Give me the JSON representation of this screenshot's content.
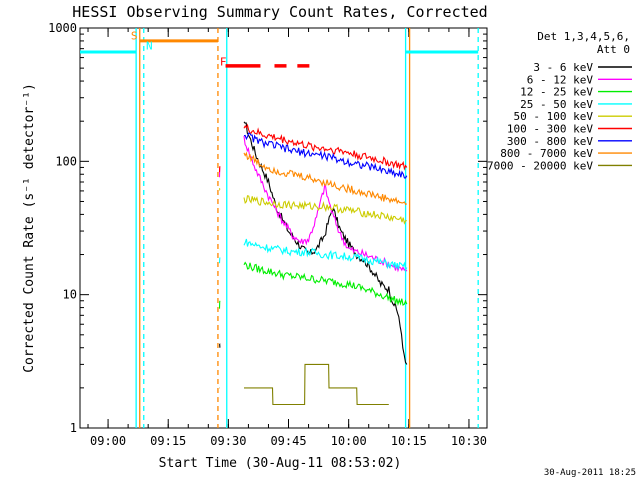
{
  "chart_data": {
    "type": "line",
    "title": "HESSI Observing Summary Count Rates, Corrected",
    "xlabel": "Start Time (30-Aug-11 08:53:02)",
    "ylabel": "Corrected Count Rate (s⁻¹ detector⁻¹)",
    "yscale": "log",
    "ylim": [
      1,
      1000
    ],
    "xlim_minutes": [
      533.0,
      634.5
    ],
    "x_ticks": [
      {
        "label": "09:00",
        "minute": 540
      },
      {
        "label": "09:15",
        "minute": 555
      },
      {
        "label": "09:30",
        "minute": 570
      },
      {
        "label": "09:45",
        "minute": 585
      },
      {
        "label": "10:00",
        "minute": 600
      },
      {
        "label": "10:15",
        "minute": 615
      },
      {
        "label": "10:30",
        "minute": 630
      }
    ],
    "y_ticks": [
      {
        "label": "1",
        "value": 1
      },
      {
        "label": "10",
        "value": 10
      },
      {
        "label": "100",
        "value": 100
      },
      {
        "label": "1000",
        "value": 1000
      }
    ],
    "legend": {
      "placement": "right",
      "header": [
        "Det 1,3,4,5,6,",
        "Att 0"
      ],
      "entries": [
        {
          "label": "3 - 6 keV",
          "color": "#000000"
        },
        {
          "label": "6 - 12 keV",
          "color": "#ff00ff"
        },
        {
          "label": "12 - 25 keV",
          "color": "#00ee00"
        },
        {
          "label": "25 - 50 keV",
          "color": "#00ffff"
        },
        {
          "label": "50 - 100 keV",
          "color": "#cccc00"
        },
        {
          "label": "100 - 300 keV",
          "color": "#ff0000"
        },
        {
          "label": "300 - 800 keV",
          "color": "#0000ff"
        },
        {
          "label": "800 - 7000 keV",
          "color": "#ff8800"
        },
        {
          "label": "7000 - 20000 keV",
          "color": "#808000"
        }
      ]
    },
    "series": [
      {
        "name": "3 - 6 keV",
        "color": "#000000",
        "segments": [
          {
            "x": [
              567.8,
              567.9
            ],
            "y": [
              4,
              4
            ]
          },
          {
            "x": [
              573.9,
              575,
              577,
              580,
              582,
              585,
              588,
              590,
              592,
              594,
              596,
              598,
              600,
              602,
              604,
              606,
              608,
              610,
              611,
              612.5,
              613.5,
              614.5
            ],
            "y": [
              210,
              160,
              110,
              70,
              45,
              30,
              23,
              20,
              22,
              28,
              45,
              30,
              24,
              20,
              18,
              15,
              12,
              11,
              9,
              7,
              4,
              3
            ]
          }
        ]
      },
      {
        "name": "6 - 12 keV",
        "color": "#ff00ff",
        "segments": [
          {
            "x": [
              567.8,
              567.9
            ],
            "y": [
              80,
              90
            ]
          },
          {
            "x": [
              573.9,
              575,
              577,
              580,
              583,
              586,
              588,
              590,
              592,
              594,
              596,
              598,
              600,
              604,
              608,
              612,
              614.5
            ],
            "y": [
              150,
              120,
              85,
              55,
              38,
              28,
              25,
              26,
              38,
              65,
              40,
              28,
              22,
              20,
              18,
              16,
              15
            ]
          }
        ]
      },
      {
        "name": "12 - 25 keV",
        "color": "#00ee00",
        "segments": [
          {
            "x": [
              567.8,
              567.9
            ],
            "y": [
              8,
              9
            ]
          },
          {
            "x": [
              573.9,
              576,
              580,
              584,
              588,
              592,
              596,
              600,
              604,
              608,
              612,
              614.5
            ],
            "y": [
              17,
              16,
              15,
              14,
              13.5,
              13,
              12.5,
              12,
              11,
              10,
              9,
              8.5
            ]
          }
        ]
      },
      {
        "name": "25 - 50 keV",
        "color": "#00ffff",
        "segments": [
          {
            "x": [
              567.8,
              567.9
            ],
            "y": [
              17,
              19
            ]
          },
          {
            "x": [
              573.9,
              578,
              582,
              586,
              590,
              594,
              598,
              602,
              606,
              610,
              614.5
            ],
            "y": [
              25,
              23,
              22,
              21,
              21,
              20,
              19.5,
              19,
              18,
              17,
              16
            ]
          }
        ]
      },
      {
        "name": "50 - 100 keV",
        "color": "#cccc00",
        "segments": [
          {
            "x": [
              567.8,
              567.9
            ],
            "y": [
              60,
              62
            ]
          },
          {
            "x": [
              573.9,
              578,
              582,
              586,
              590,
              594,
              598,
              602,
              606,
              610,
              614.5
            ],
            "y": [
              52,
              50,
              48,
              47,
              46,
              46,
              44,
              42,
              40,
              38,
              36
            ]
          }
        ]
      },
      {
        "name": "100 - 300 keV",
        "color": "#ff0000",
        "segments": [
          {
            "x": [
              567.8,
              567.9
            ],
            "y": [
              88,
              92
            ]
          },
          {
            "x": [
              573.9,
              578,
              582,
              586,
              590,
              594,
              598,
              602,
              606,
              610,
              614.5
            ],
            "y": [
              180,
              160,
              150,
              140,
              130,
              125,
              120,
              112,
              105,
              98,
              90
            ]
          }
        ]
      },
      {
        "name": "300 - 800 keV",
        "color": "#0000ff",
        "segments": [
          {
            "x": [
              573.9,
              578,
              582,
              586,
              590,
              594,
              598,
              602,
              606,
              610,
              614.5
            ],
            "y": [
              160,
              140,
              130,
              120,
              115,
              110,
              102,
              96,
              90,
              84,
              78
            ]
          }
        ]
      },
      {
        "name": "800 - 7000 keV",
        "color": "#ff8800",
        "segments": [
          {
            "x": [
              573.9,
              578,
              582,
              586,
              590,
              594,
              598,
              602,
              606,
              610,
              614.5
            ],
            "y": [
              115,
              95,
              85,
              80,
              75,
              70,
              64,
              60,
              56,
              52,
              48
            ]
          }
        ]
      },
      {
        "name": "7000 - 20000 keV",
        "color": "#808000",
        "segments": [
          {
            "x": [
              567.8,
              567.9
            ],
            "y": [
              2,
              2
            ]
          },
          {
            "x": [
              573.9,
              581,
              581.1,
              589,
              589.1,
              595,
              595.1,
              602,
              602.1,
              610
            ],
            "y": [
              2,
              2,
              1.5,
              1.5,
              3,
              3,
              2,
              2,
              1.5,
              1.5
            ]
          }
        ]
      }
    ],
    "attenuator_lines": [
      {
        "minute": 547.0,
        "color": "#00ffff",
        "style": "solid"
      },
      {
        "minute": 569.6,
        "color": "#00ffff",
        "style": "solid"
      },
      {
        "minute": 548.9,
        "color": "#00ffff",
        "style": "dashed"
      },
      {
        "minute": 614.2,
        "color": "#00ffff",
        "style": "solid"
      },
      {
        "minute": 632.3,
        "color": "#00ffff",
        "style": "dashed"
      },
      {
        "minute": 547.9,
        "color": "#ff8800",
        "style": "solid"
      },
      {
        "minute": 567.4,
        "color": "#ff8800",
        "style": "dashed"
      },
      {
        "minute": 615.2,
        "color": "#ff8800",
        "style": "solid"
      }
    ],
    "top_bars": [
      {
        "color": "#00ffff",
        "x": [
          533.0,
          547.0
        ],
        "y": 660
      },
      {
        "color": "#00ffff",
        "x": [
          614.2,
          632.3
        ],
        "y": 660
      },
      {
        "color": "#ff8800",
        "x": [
          547.9,
          567.4
        ],
        "y": 800
      }
    ],
    "flare_flags": [
      {
        "color": "#ff0000",
        "x": [
          569.3,
          578.0
        ],
        "y": 520
      },
      {
        "color": "#ff0000",
        "x": [
          581.5,
          584.5
        ],
        "y": 520
      },
      {
        "color": "#ff0000",
        "x": [
          587.2,
          590.2
        ],
        "y": 520
      }
    ],
    "markers": [
      {
        "label": "S",
        "minute": 546.5,
        "y": 880,
        "color": "#ff8800"
      },
      {
        "label": "N",
        "minute": 550.3,
        "y": 740,
        "color": "#00ffff"
      },
      {
        "label": "F",
        "minute": 568.7,
        "y": 560,
        "color": "#ff0000"
      }
    ]
  },
  "footer": {
    "timestamp": "30-Aug-2011 18:25"
  }
}
